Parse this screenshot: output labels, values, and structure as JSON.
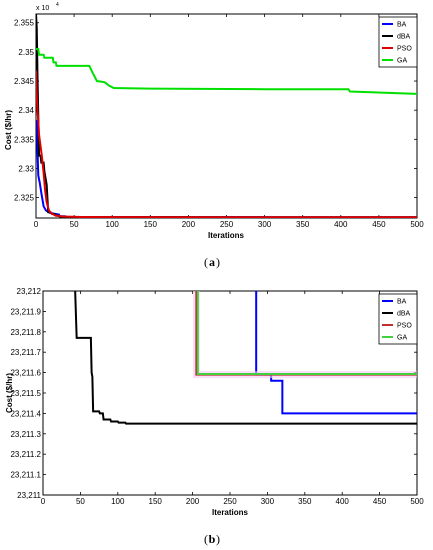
{
  "chart_data": [
    {
      "type": "line",
      "caption": "a",
      "xlabel": "Iterations",
      "ylabel": "Cost ($/hr)",
      "multiplier": "x 10",
      "multiplier_exp": "4",
      "xlim": [
        0,
        500
      ],
      "ylim": [
        2.3215,
        2.3565
      ],
      "xticks": [
        0,
        50,
        100,
        150,
        200,
        250,
        300,
        350,
        400,
        450,
        500
      ],
      "yticks": [
        2.325,
        2.33,
        2.335,
        2.34,
        2.345,
        2.35,
        2.355
      ],
      "ytick_labels": [
        "2.325",
        "2.33",
        "2.335",
        "2.34",
        "2.345",
        "2.35",
        "2.355"
      ],
      "legend_position": "top-right",
      "series": [
        {
          "name": "BA",
          "color": "#0000ff",
          "points": [
            [
              0,
              2.3365
            ],
            [
              1,
              2.3383
            ],
            [
              2,
              2.3328
            ],
            [
              3,
              2.3288
            ],
            [
              5,
              2.3275
            ],
            [
              7,
              2.3258
            ],
            [
              10,
              2.3235
            ],
            [
              13,
              2.3228
            ],
            [
              18,
              2.3224
            ],
            [
              25,
              2.3222
            ],
            [
              30,
              2.3221
            ],
            [
              31,
              2.3218
            ],
            [
              38,
              2.3218
            ],
            [
              39,
              2.32165
            ],
            [
              300,
              2.32165
            ],
            [
              301,
              2.32162
            ],
            [
              500,
              2.32162
            ]
          ]
        },
        {
          "name": "dBA",
          "color": "#000000",
          "points": [
            [
              0,
              2.3565
            ],
            [
              1,
              2.354
            ],
            [
              2,
              2.3455
            ],
            [
              4,
              2.3322
            ],
            [
              6,
              2.3322
            ],
            [
              7,
              2.331
            ],
            [
              10,
              2.331
            ],
            [
              11,
              2.3295
            ],
            [
              14,
              2.3272
            ],
            [
              16,
              2.3225
            ],
            [
              19,
              2.3225
            ],
            [
              21,
              2.3222
            ],
            [
              24,
              2.3222
            ],
            [
              26,
              2.3219
            ],
            [
              30,
              2.3219
            ],
            [
              32,
              2.3217
            ],
            [
              40,
              2.3217
            ],
            [
              41,
              2.32165
            ],
            [
              200,
              2.32165
            ],
            [
              201,
              2.32162
            ],
            [
              500,
              2.32162
            ]
          ]
        },
        {
          "name": "PSO",
          "color": "#e00000",
          "points": [
            [
              0,
              2.3468
            ],
            [
              1,
              2.3425
            ],
            [
              2,
              2.3398
            ],
            [
              3,
              2.3382
            ],
            [
              4,
              2.3358
            ],
            [
              6,
              2.3338
            ],
            [
              8,
              2.3318
            ],
            [
              10,
              2.3292
            ],
            [
              12,
              2.3262
            ],
            [
              14,
              2.3242
            ],
            [
              17,
              2.3228
            ],
            [
              20,
              2.3223
            ],
            [
              26,
              2.3219
            ],
            [
              35,
              2.32175
            ],
            [
              60,
              2.32168
            ],
            [
              100,
              2.32165
            ],
            [
              500,
              2.32162
            ]
          ]
        },
        {
          "name": "GA",
          "color": "#00e000",
          "points": [
            [
              0,
              2.3505
            ],
            [
              3,
              2.3505
            ],
            [
              4,
              2.3495
            ],
            [
              10,
              2.3495
            ],
            [
              11,
              2.349
            ],
            [
              22,
              2.349
            ],
            [
              23,
              2.3482
            ],
            [
              26,
              2.3482
            ],
            [
              27,
              2.3476
            ],
            [
              70,
              2.3476
            ],
            [
              74,
              2.3465
            ],
            [
              80,
              2.345
            ],
            [
              90,
              2.3448
            ],
            [
              96,
              2.3442
            ],
            [
              102,
              2.3438
            ],
            [
              150,
              2.3437
            ],
            [
              300,
              2.3436
            ],
            [
              410,
              2.3436
            ],
            [
              412,
              2.3432
            ],
            [
              500,
              2.3428
            ]
          ]
        }
      ]
    },
    {
      "type": "line",
      "caption": "b",
      "xlabel": "Iterations",
      "ylabel": "Cost ($/hr)",
      "xlim": [
        0,
        500
      ],
      "ylim": [
        23211,
        23212
      ],
      "xticks": [
        0,
        50,
        100,
        150,
        200,
        250,
        300,
        350,
        400,
        450,
        500
      ],
      "yticks": [
        23211,
        23211.1,
        23211.2,
        23211.3,
        23211.4,
        23211.5,
        23211.6,
        23211.7,
        23211.8,
        23211.9,
        23212
      ],
      "ytick_labels": [
        "23,211",
        "23,211.1",
        "23,211.2",
        "23,211.3",
        "23,211.4",
        "23,211.5",
        "23,211.6",
        "23,211.7",
        "23,211.8",
        "23,211.9",
        "23,212"
      ],
      "legend_position": "top-right",
      "series": [
        {
          "name": "BA",
          "color": "#0000ff",
          "points": [
            [
              285,
              23212.1
            ],
            [
              285,
              23211.59
            ],
            [
              305,
              23211.59
            ],
            [
              305,
              23211.56
            ],
            [
              320,
              23211.56
            ],
            [
              320,
              23211.4
            ],
            [
              500,
              23211.4
            ]
          ]
        },
        {
          "name": "dBA",
          "color": "#000000",
          "points": [
            [
              40,
              23212.1
            ],
            [
              43,
              23212
            ],
            [
              45,
              23211.77
            ],
            [
              64,
              23211.77
            ],
            [
              65,
              23211.6
            ],
            [
              66,
              23211.58
            ],
            [
              67,
              23211.41
            ],
            [
              75,
              23211.41
            ],
            [
              76,
              23211.4
            ],
            [
              80,
              23211.4
            ],
            [
              81,
              23211.37
            ],
            [
              90,
              23211.37
            ],
            [
              91,
              23211.36
            ],
            [
              100,
              23211.36
            ],
            [
              101,
              23211.355
            ],
            [
              110,
              23211.355
            ],
            [
              111,
              23211.35
            ],
            [
              500,
              23211.35
            ]
          ]
        },
        {
          "name": "PSO",
          "color": "#c03030",
          "points": [
            [
              205,
              23212.1
            ],
            [
              205,
              23211.59
            ],
            [
              500,
              23211.59
            ]
          ]
        },
        {
          "name": "GA",
          "color": "#40d040",
          "points": [
            [
              207,
              23212.1
            ],
            [
              207,
              23211.593
            ],
            [
              500,
              23211.593
            ]
          ]
        }
      ]
    }
  ]
}
